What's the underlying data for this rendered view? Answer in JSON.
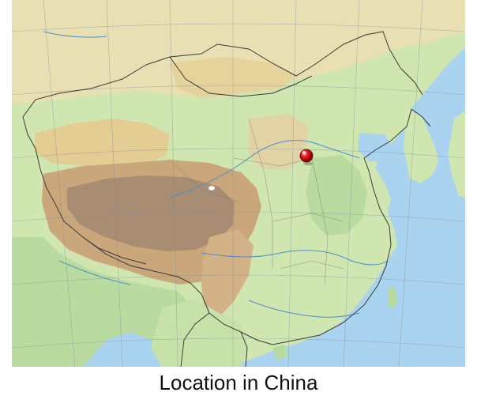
{
  "map": {
    "caption": "Location in China",
    "colors": {
      "sea": "#a9d3ef",
      "lowland": "#b9dba0",
      "plain": "#cfe6b0",
      "upland": "#e8dfb2",
      "plateau": "#c9a77a",
      "high_plateau": "#a88d73",
      "desert": "#e3cd93",
      "border": "#3b3b3b",
      "graticule": "#7a8a9a",
      "river": "#4d8fc7",
      "marker": "#c0141b"
    },
    "marker_icon": "red-pin-icon"
  }
}
